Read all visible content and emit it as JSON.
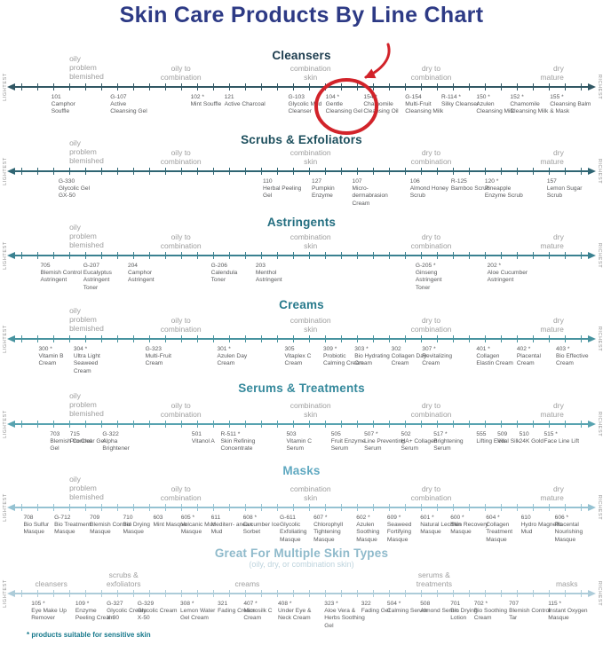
{
  "title": "Skin Care Products By Line Chart",
  "footnote": "* products suitable for sensitive skin",
  "axis": {
    "left": "LIGHTEST",
    "right": "RICHEST"
  },
  "colors": {
    "title": "#2d3a85",
    "footnote_teal": "#17798c",
    "label_gray": "#9e9e9e",
    "product_text": "#58595b",
    "annotation_red": "#d2232a"
  },
  "annotation": {
    "shape": "circle-and-arrow",
    "color": "#d2232a",
    "highlighted_product": "104 * Gentle Cleansing Gel"
  },
  "skin_labels": [
    {
      "x": 11.5,
      "align": "left",
      "lines": [
        "oily",
        "problem",
        "blemished"
      ]
    },
    {
      "x": 30,
      "align": "center",
      "lines": [
        "oily to",
        "combination"
      ]
    },
    {
      "x": 51.5,
      "align": "center",
      "lines": [
        "combination",
        "skin"
      ]
    },
    {
      "x": 71.5,
      "align": "center",
      "lines": [
        "dry to",
        "combination"
      ]
    },
    {
      "x": 93.5,
      "align": "right",
      "lines": [
        "dry",
        "mature"
      ]
    }
  ],
  "sections": [
    {
      "name": "Cleansers",
      "header_color": "#1b3b4d",
      "line_color": "#315764",
      "products": [
        {
          "code": "101",
          "name": "Camphor Souffle",
          "x": 8.5
        },
        {
          "code": "G-107",
          "name": "Active Cleansing Gel",
          "x": 18.3
        },
        {
          "code": "102 *",
          "name": "Mint Souffle",
          "x": 31.6
        },
        {
          "code": "121",
          "name": "Active Charcoal",
          "x": 37.2
        },
        {
          "code": "G-103",
          "name": "Glycolic Mud Cleanser",
          "x": 47.8
        },
        {
          "code": "104 *",
          "name": "Gentle Cleansing Gel",
          "x": 54.0
        },
        {
          "code": "154 *",
          "name": "Chamomile Cleansing Oil",
          "x": 60.3
        },
        {
          "code": "G-154",
          "name": "Multi-Fruit Cleansing Milk",
          "x": 67.2
        },
        {
          "code": "R-114 *",
          "name": "Silky Cleanser",
          "x": 73.2
        },
        {
          "code": "150 *",
          "name": "Azulen Cleansing Milk",
          "x": 79.0
        },
        {
          "code": "152 *",
          "name": "Chamomile Cleansing Milk",
          "x": 84.6
        },
        {
          "code": "155 *",
          "name": "Cleansing Balm & Mask",
          "x": 91.2
        }
      ]
    },
    {
      "name": "Scrubs & Exfoliators",
      "header_color": "#1d4f5d",
      "line_color": "#2f6573",
      "products": [
        {
          "code": "G-330",
          "name": "Glycolic Gel GX-50",
          "x": 9.7
        },
        {
          "code": "110",
          "name": "Herbal Peeling Gel",
          "x": 43.6
        },
        {
          "code": "127",
          "name": "Pumpkin Enzyme",
          "x": 51.7
        },
        {
          "code": "107",
          "name": "Micro- dermabrasion Cream",
          "x": 58.4
        },
        {
          "code": "106",
          "name": "Almond Honey Scrub",
          "x": 68.0
        },
        {
          "code": "R-125",
          "name": "Bamboo Scrub",
          "x": 74.8
        },
        {
          "code": "120 *",
          "name": "Pineapple Enzyme Scrub",
          "x": 80.4
        },
        {
          "code": "157",
          "name": "Lemon Sugar Scrub",
          "x": 90.7
        }
      ]
    },
    {
      "name": "Astringents",
      "header_color": "#236e80",
      "line_color": "#3a8190",
      "products": [
        {
          "code": "705",
          "name": "Blemish Control Astringent",
          "x": 6.7
        },
        {
          "code": "G-207",
          "name": "Eucalyptus Astringent Toner",
          "x": 13.8
        },
        {
          "code": "204",
          "name": "Camphor Astringent",
          "x": 21.2
        },
        {
          "code": "G-206",
          "name": "Calendula Toner",
          "x": 35.0
        },
        {
          "code": "203",
          "name": "Menthol Astringent",
          "x": 42.4
        },
        {
          "code": "G-205 *",
          "name": "Ginseng Astringent Toner",
          "x": 68.9
        },
        {
          "code": "202 *",
          "name": "Aloe Cucumber Astringent",
          "x": 80.8
        }
      ]
    },
    {
      "name": "Creams",
      "header_color": "#287a8c",
      "line_color": "#47939f",
      "products": [
        {
          "code": "300 *",
          "name": "Vitamin B Cream",
          "x": 6.4
        },
        {
          "code": "304 *",
          "name": "Ultra Light Seaweed Cream",
          "x": 12.2
        },
        {
          "code": "G-323",
          "name": "Multi-Fruit Cream",
          "x": 24.1
        },
        {
          "code": "301 *",
          "name": "Azulen Day Cream",
          "x": 36.0
        },
        {
          "code": "305",
          "name": "Vitaplex C Cream",
          "x": 47.2
        },
        {
          "code": "309 *",
          "name": "Probiotic Calming Cream",
          "x": 53.6
        },
        {
          "code": "303 *",
          "name": "Bio Hydrating Cream",
          "x": 58.8
        },
        {
          "code": "302",
          "name": "Collagen Day Cream",
          "x": 64.9
        },
        {
          "code": "307 *",
          "name": "Revitalizing Cream",
          "x": 70.0
        },
        {
          "code": "401 *",
          "name": "Collagen Elastin Cream",
          "x": 79.0
        },
        {
          "code": "402 *",
          "name": "Placental Cream",
          "x": 85.7
        },
        {
          "code": "403 *",
          "name": "Bio Effective Cream",
          "x": 92.2
        }
      ]
    },
    {
      "name": "Serums & Treatments",
      "header_color": "#35899c",
      "line_color": "#58a3b0",
      "products": [
        {
          "code": "703",
          "name": "Blemish Control Gel",
          "x": 8.3
        },
        {
          "code": "715",
          "name": "Pro Clear Gel",
          "x": 11.6
        },
        {
          "code": "G-322",
          "name": "Alpha Brightener",
          "x": 17.0
        },
        {
          "code": "501",
          "name": "Vitanol A",
          "x": 31.8
        },
        {
          "code": "R-511 *",
          "name": "Skin Refining Concentrate",
          "x": 36.6
        },
        {
          "code": "503",
          "name": "Vitamin C Serum",
          "x": 47.5
        },
        {
          "code": "505",
          "name": "Fruit Enzyme Serum",
          "x": 54.9
        },
        {
          "code": "507 *",
          "name": "Line Preventing Serum",
          "x": 60.4
        },
        {
          "code": "502",
          "name": "HA+ Collagen Serum",
          "x": 66.5
        },
        {
          "code": "517 *",
          "name": "Brightening Serum",
          "x": 71.9
        },
        {
          "code": "555",
          "name": "Lifting Elixir",
          "x": 79.0
        },
        {
          "code": "509",
          "name": "Vital Silk",
          "x": 82.5
        },
        {
          "code": "510",
          "name": "24K Gold",
          "x": 86.1
        },
        {
          "code": "515 *",
          "name": "Face Line Lift",
          "x": 90.2
        }
      ]
    },
    {
      "name": "Masks",
      "header_color": "#60a9c1",
      "line_color": "#95c2d2",
      "products": [
        {
          "code": "708",
          "name": "Bio Sulfur Masque",
          "x": 3.9
        },
        {
          "code": "G-712",
          "name": "Bio Treatment Masque",
          "x": 9.0
        },
        {
          "code": "709",
          "name": "Blemish Control Masque",
          "x": 14.9
        },
        {
          "code": "710",
          "name": "Bio Drying Masque",
          "x": 20.4
        },
        {
          "code": "603",
          "name": "Mint Masque",
          "x": 25.4
        },
        {
          "code": "605 *",
          "name": "Volcanic Mud Masque",
          "x": 30.0
        },
        {
          "code": "611",
          "name": "Mediterr- anean Mud",
          "x": 35.0
        },
        {
          "code": "608 *",
          "name": "Cucumber Ice Sorbet",
          "x": 40.3
        },
        {
          "code": "G-611",
          "name": "Glycolic Exfoliating Masque",
          "x": 46.4
        },
        {
          "code": "607 *",
          "name": "Chlorophyll Tightening Masque",
          "x": 52.0
        },
        {
          "code": "602 *",
          "name": "Azulen Soothing Masque",
          "x": 59.1
        },
        {
          "code": "609 *",
          "name": "Seaweed Fortifying Masque",
          "x": 64.2
        },
        {
          "code": "601 *",
          "name": "Natural Lecithin Masque",
          "x": 69.7
        },
        {
          "code": "600 *",
          "name": "Skin Recovery Masque",
          "x": 74.7
        },
        {
          "code": "604 *",
          "name": "Collagen Treatment Masque",
          "x": 80.6
        },
        {
          "code": "610",
          "name": "Hydro Magnetic Mud",
          "x": 86.4
        },
        {
          "code": "606 *",
          "name": "Placental Nourishing Masque",
          "x": 92.0
        }
      ]
    },
    {
      "name": "Great For Multiple Skin Types",
      "subtitle": "(oily, dry, or combination skin)",
      "header_color": "#8fbacb",
      "line_color": "#adccd9",
      "category_labels": [
        {
          "x": 8.5,
          "align": "center",
          "lines": [
            "cleansers"
          ]
        },
        {
          "x": 20.5,
          "align": "center",
          "lines": [
            "scrubs &",
            "exfoliators"
          ]
        },
        {
          "x": 41,
          "align": "center",
          "lines": [
            "creams"
          ]
        },
        {
          "x": 72,
          "align": "center",
          "lines": [
            "serums &",
            "treatments"
          ]
        },
        {
          "x": 94,
          "align": "center",
          "lines": [
            "masks"
          ]
        }
      ],
      "products": [
        {
          "code": "105 *",
          "name": "Eye Make Up Remover",
          "x": 5.2
        },
        {
          "code": "109 *",
          "name": "Enzyme Peeling Cream",
          "x": 12.5
        },
        {
          "code": "G-327",
          "name": "Glycolic Cream X-30",
          "x": 17.7
        },
        {
          "code": "G-329",
          "name": "Glycolic Cream X-50",
          "x": 22.8
        },
        {
          "code": "308 *",
          "name": "Lemon Water Gel Cream",
          "x": 29.9
        },
        {
          "code": "321",
          "name": "Fading Cream",
          "x": 36.1
        },
        {
          "code": "407 *",
          "name": "Microsilk C Cream",
          "x": 40.4
        },
        {
          "code": "408 *",
          "name": "Under Eye & Neck Cream",
          "x": 46.1
        },
        {
          "code": "323 *",
          "name": "Aloe Vera & Herbs Soothing Gel",
          "x": 53.8
        },
        {
          "code": "322",
          "name": "Fading Gel",
          "x": 59.9
        },
        {
          "code": "504 *",
          "name": "Calming Serum",
          "x": 64.2
        },
        {
          "code": "508",
          "name": "Almond Serum",
          "x": 69.7
        },
        {
          "code": "701",
          "name": "Bio Drying Lotion",
          "x": 74.7
        },
        {
          "code": "702 *",
          "name": "Bio Soothing Cream",
          "x": 78.6
        },
        {
          "code": "707",
          "name": "Blemish Control Tar",
          "x": 84.4
        },
        {
          "code": "115 *",
          "name": "Instant Oxygen Masque",
          "x": 90.9
        }
      ]
    }
  ]
}
